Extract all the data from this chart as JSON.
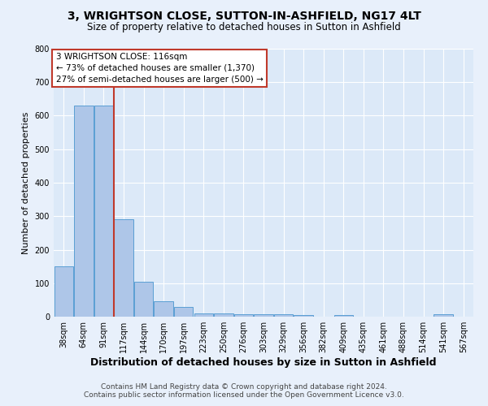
{
  "title": "3, WRIGHTSON CLOSE, SUTTON-IN-ASHFIELD, NG17 4LT",
  "subtitle": "Size of property relative to detached houses in Sutton in Ashfield",
  "xlabel": "Distribution of detached houses by size in Sutton in Ashfield",
  "ylabel": "Number of detached properties",
  "footnote1": "Contains HM Land Registry data © Crown copyright and database right 2024.",
  "footnote2": "Contains public sector information licensed under the Open Government Licence v3.0.",
  "categories": [
    "38sqm",
    "64sqm",
    "91sqm",
    "117sqm",
    "144sqm",
    "170sqm",
    "197sqm",
    "223sqm",
    "250sqm",
    "276sqm",
    "303sqm",
    "329sqm",
    "356sqm",
    "382sqm",
    "409sqm",
    "435sqm",
    "461sqm",
    "488sqm",
    "514sqm",
    "541sqm",
    "567sqm"
  ],
  "values": [
    150,
    630,
    630,
    290,
    105,
    45,
    30,
    10,
    10,
    7,
    7,
    7,
    5,
    0,
    5,
    0,
    0,
    0,
    0,
    7,
    0
  ],
  "bar_color": "#aec6e8",
  "bar_edge_color": "#5a9fd4",
  "annotation_line1": "3 WRIGHTSON CLOSE: 116sqm",
  "annotation_line2": "← 73% of detached houses are smaller (1,370)",
  "annotation_line3": "27% of semi-detached houses are larger (500) →",
  "vline_x": 2.5,
  "vline_color": "#c0392b",
  "ylim": [
    0,
    800
  ],
  "yticks": [
    0,
    100,
    200,
    300,
    400,
    500,
    600,
    700,
    800
  ],
  "bg_color": "#dce9f8",
  "fig_bg_color": "#e8f0fb",
  "grid_color": "#ffffff",
  "title_fontsize": 10,
  "subtitle_fontsize": 8.5,
  "annotation_fontsize": 7.5,
  "ylabel_fontsize": 8,
  "xlabel_fontsize": 9,
  "tick_fontsize": 7,
  "footnote_fontsize": 6.5
}
